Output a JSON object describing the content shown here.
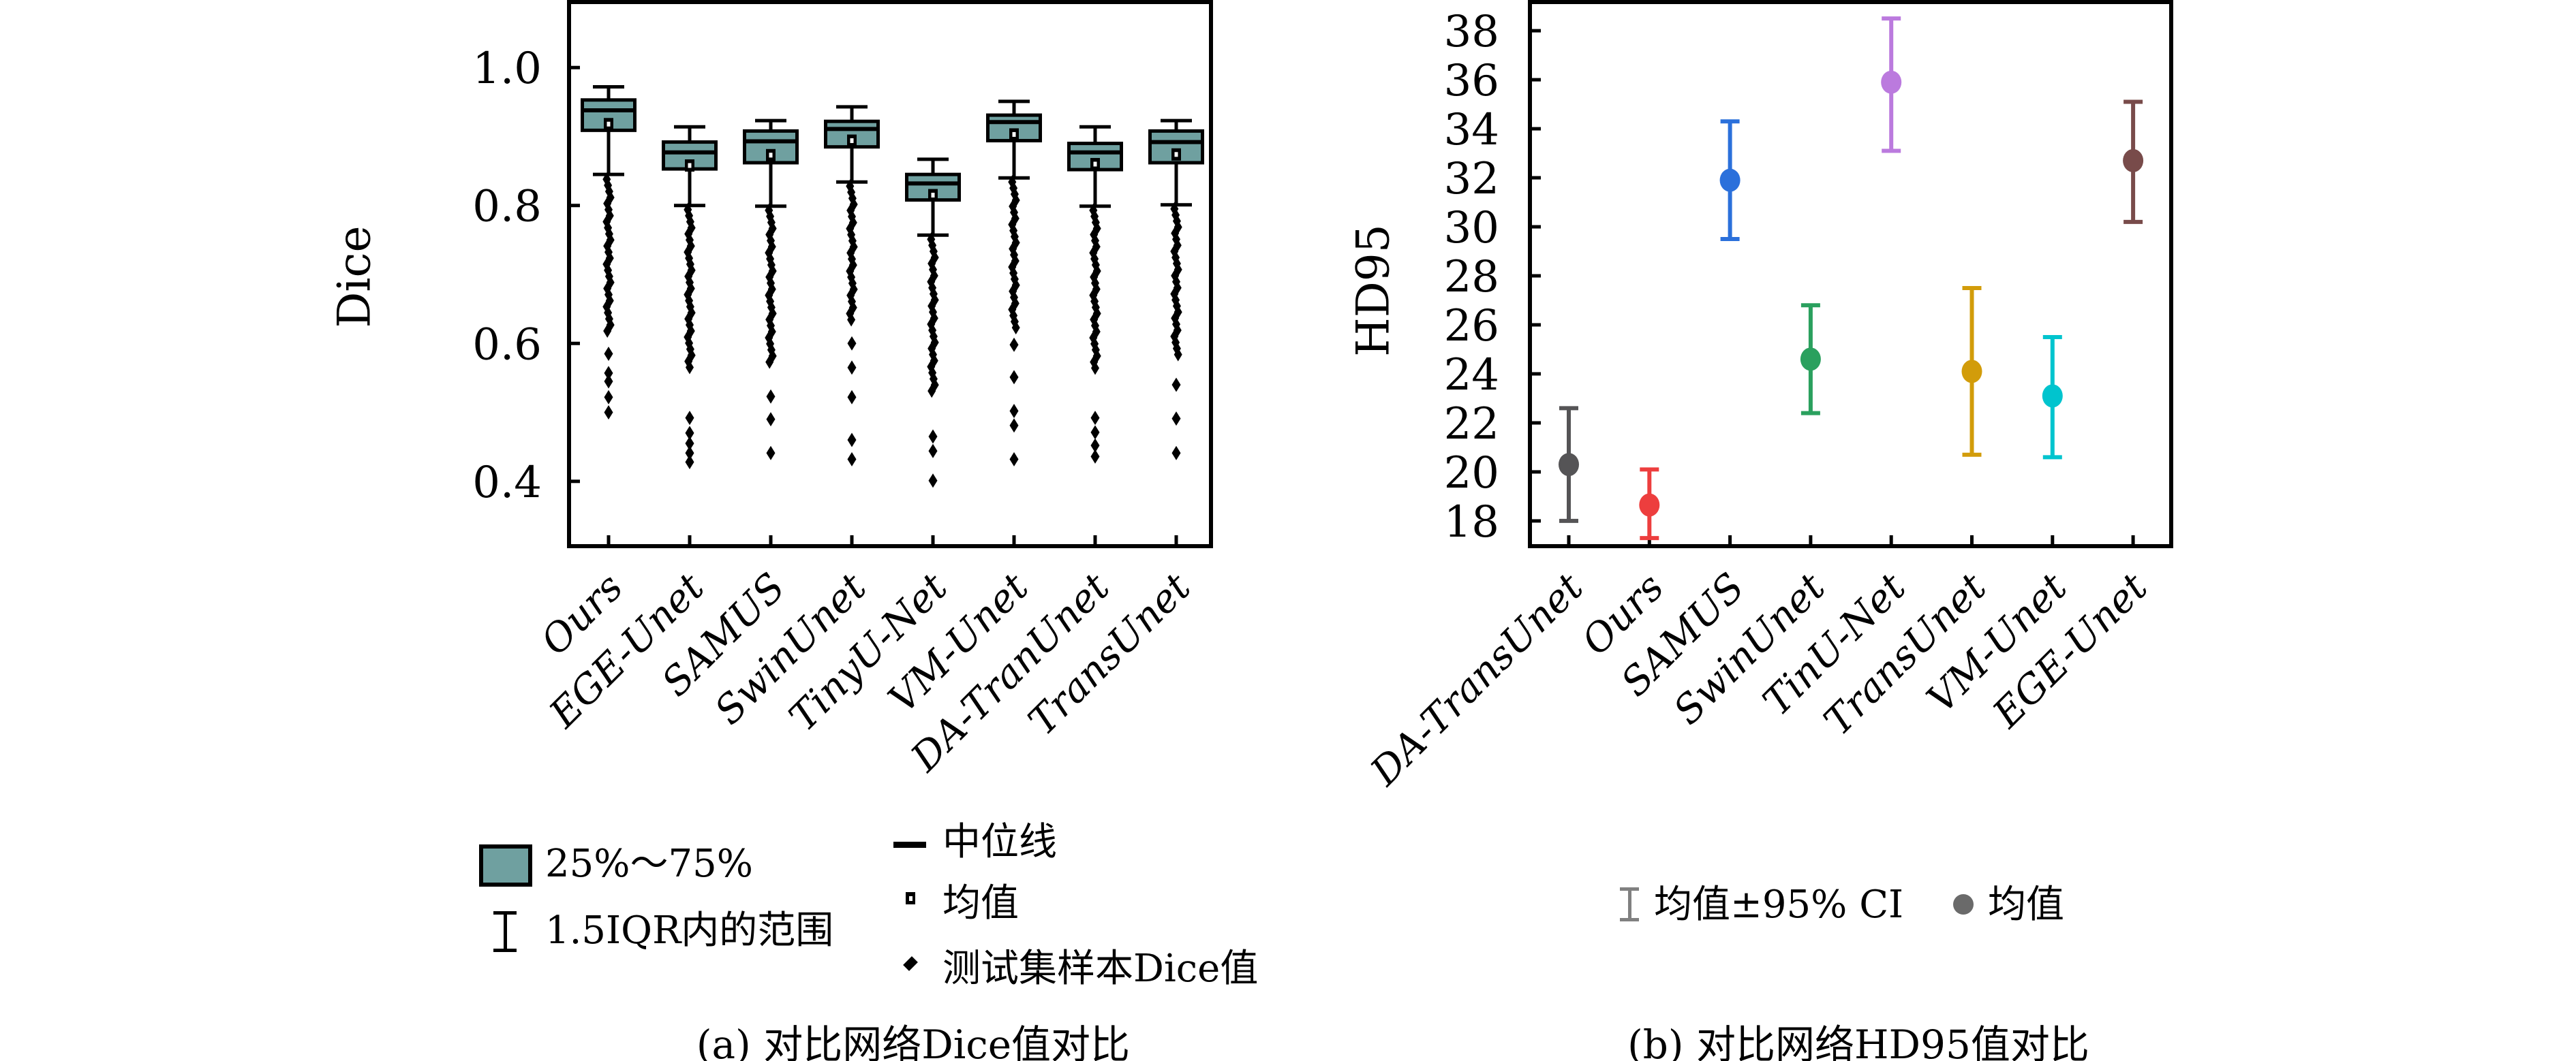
{
  "accent_colors": {
    "box_fill": "#6fa0a0",
    "axis": "#000000"
  },
  "panel_a": {
    "caption": "(a) 对比网络Dice值对比",
    "ylabel": "Dice",
    "legend": {
      "box_label": "25%～75%",
      "whisker_label": "1.5IQR内的范围",
      "median_label": "中位线",
      "mean_label": "均值",
      "outlier_label": "测试集样本Dice值"
    }
  },
  "panel_b": {
    "caption": "(b) 对比网络HD95值对比",
    "ylabel": "HD95",
    "legend": {
      "ci_label": "均值±95% CI",
      "mean_label": "均值",
      "marker_color": "#6a6a6a"
    }
  },
  "chart_data": [
    {
      "type": "box",
      "ylabel": "Dice",
      "categories": [
        "Ours",
        "EGE-Unet",
        "SAMUS",
        "SwinUnet",
        "TinyU-Net",
        "VM-Unet",
        "DA-TranUnet",
        "TransUnet"
      ],
      "ylim": [
        0.306,
        1.095
      ],
      "yticks": [
        0.4,
        0.6,
        0.8,
        1.0
      ],
      "ytick_labels": [
        "0.4",
        "0.6",
        "0.8",
        "1.0"
      ],
      "box_color": "#6fa0a0",
      "grid": false,
      "boxes": [
        {
          "q1": 0.909,
          "median": 0.938,
          "q3": 0.953,
          "mean": 0.918,
          "whisker_low": 0.845,
          "whisker_high": 0.972,
          "outliers_dense": [
            0.838,
            0.615
          ],
          "outliers": [
            0.585,
            0.557,
            0.545,
            0.522,
            0.5
          ]
        },
        {
          "q1": 0.853,
          "median": 0.877,
          "q3": 0.892,
          "mean": 0.858,
          "whisker_low": 0.8,
          "whisker_high": 0.914,
          "outliers_dense": [
            0.794,
            0.56
          ],
          "outliers": [
            0.492,
            0.47,
            0.455,
            0.441,
            0.428
          ]
        },
        {
          "q1": 0.862,
          "median": 0.893,
          "q3": 0.908,
          "mean": 0.873,
          "whisker_low": 0.799,
          "whisker_high": 0.923,
          "outliers_dense": [
            0.793,
            0.572
          ],
          "outliers": [
            0.523,
            0.49,
            0.441
          ]
        },
        {
          "q1": 0.885,
          "median": 0.911,
          "q3": 0.922,
          "mean": 0.894,
          "whisker_low": 0.834,
          "whisker_high": 0.943,
          "outliers_dense": [
            0.828,
            0.628
          ],
          "outliers": [
            0.6,
            0.565,
            0.522,
            0.46,
            0.432
          ]
        },
        {
          "q1": 0.808,
          "median": 0.832,
          "q3": 0.845,
          "mean": 0.815,
          "whisker_low": 0.757,
          "whisker_high": 0.867,
          "outliers_dense": [
            0.751,
            0.525
          ],
          "outliers": [
            0.465,
            0.444,
            0.401
          ]
        },
        {
          "q1": 0.894,
          "median": 0.921,
          "q3": 0.931,
          "mean": 0.903,
          "whisker_low": 0.84,
          "whisker_high": 0.951,
          "outliers_dense": [
            0.834,
            0.622
          ],
          "outliers": [
            0.598,
            0.551,
            0.502,
            0.481,
            0.432
          ]
        },
        {
          "q1": 0.852,
          "median": 0.877,
          "q3": 0.89,
          "mean": 0.86,
          "whisker_low": 0.799,
          "whisker_high": 0.914,
          "outliers_dense": [
            0.793,
            0.558
          ],
          "outliers": [
            0.492,
            0.471,
            0.452,
            0.436
          ]
        },
        {
          "q1": 0.862,
          "median": 0.892,
          "q3": 0.908,
          "mean": 0.874,
          "whisker_low": 0.801,
          "whisker_high": 0.923,
          "outliers_dense": [
            0.795,
            0.578
          ],
          "outliers": [
            0.54,
            0.491,
            0.441
          ]
        }
      ]
    },
    {
      "type": "errorbar",
      "ylabel": "HD95",
      "categories": [
        "DA-TransUnet",
        "Ours",
        "SAMUS",
        "SwinUnet",
        "TinU-Net",
        "TransUnet",
        "VM-Unet",
        "EGE-Unet"
      ],
      "ylim": [
        16.97,
        39.17
      ],
      "yticks": [
        18,
        20,
        22,
        24,
        26,
        28,
        30,
        32,
        34,
        36,
        38
      ],
      "ytick_labels": [
        "18",
        "20",
        "22",
        "24",
        "26",
        "28",
        "30",
        "32",
        "34",
        "36",
        "38"
      ],
      "grid": false,
      "series": [
        {
          "name": "DA-TransUnet",
          "mean": 20.3,
          "ci_low": 18.0,
          "ci_high": 22.6,
          "color": "#555456"
        },
        {
          "name": "Ours",
          "mean": 18.65,
          "ci_low": 17.3,
          "ci_high": 20.1,
          "color": "#ed3e3e"
        },
        {
          "name": "SAMUS",
          "mean": 31.9,
          "ci_low": 29.5,
          "ci_high": 34.3,
          "color": "#2b70db"
        },
        {
          "name": "SwinUnet",
          "mean": 24.6,
          "ci_low": 22.4,
          "ci_high": 26.8,
          "color": "#2aa05e"
        },
        {
          "name": "TinU-Net",
          "mean": 35.9,
          "ci_low": 33.1,
          "ci_high": 38.5,
          "color": "#bb7ade"
        },
        {
          "name": "TransUnet",
          "mean": 24.1,
          "ci_low": 20.7,
          "ci_high": 27.5,
          "color": "#d29c0a"
        },
        {
          "name": "VM-Unet",
          "mean": 23.1,
          "ci_low": 20.6,
          "ci_high": 25.5,
          "color": "#00c4ce"
        },
        {
          "name": "EGE-Unet",
          "mean": 32.7,
          "ci_low": 30.2,
          "ci_high": 35.1,
          "color": "#784b4a"
        }
      ]
    }
  ]
}
